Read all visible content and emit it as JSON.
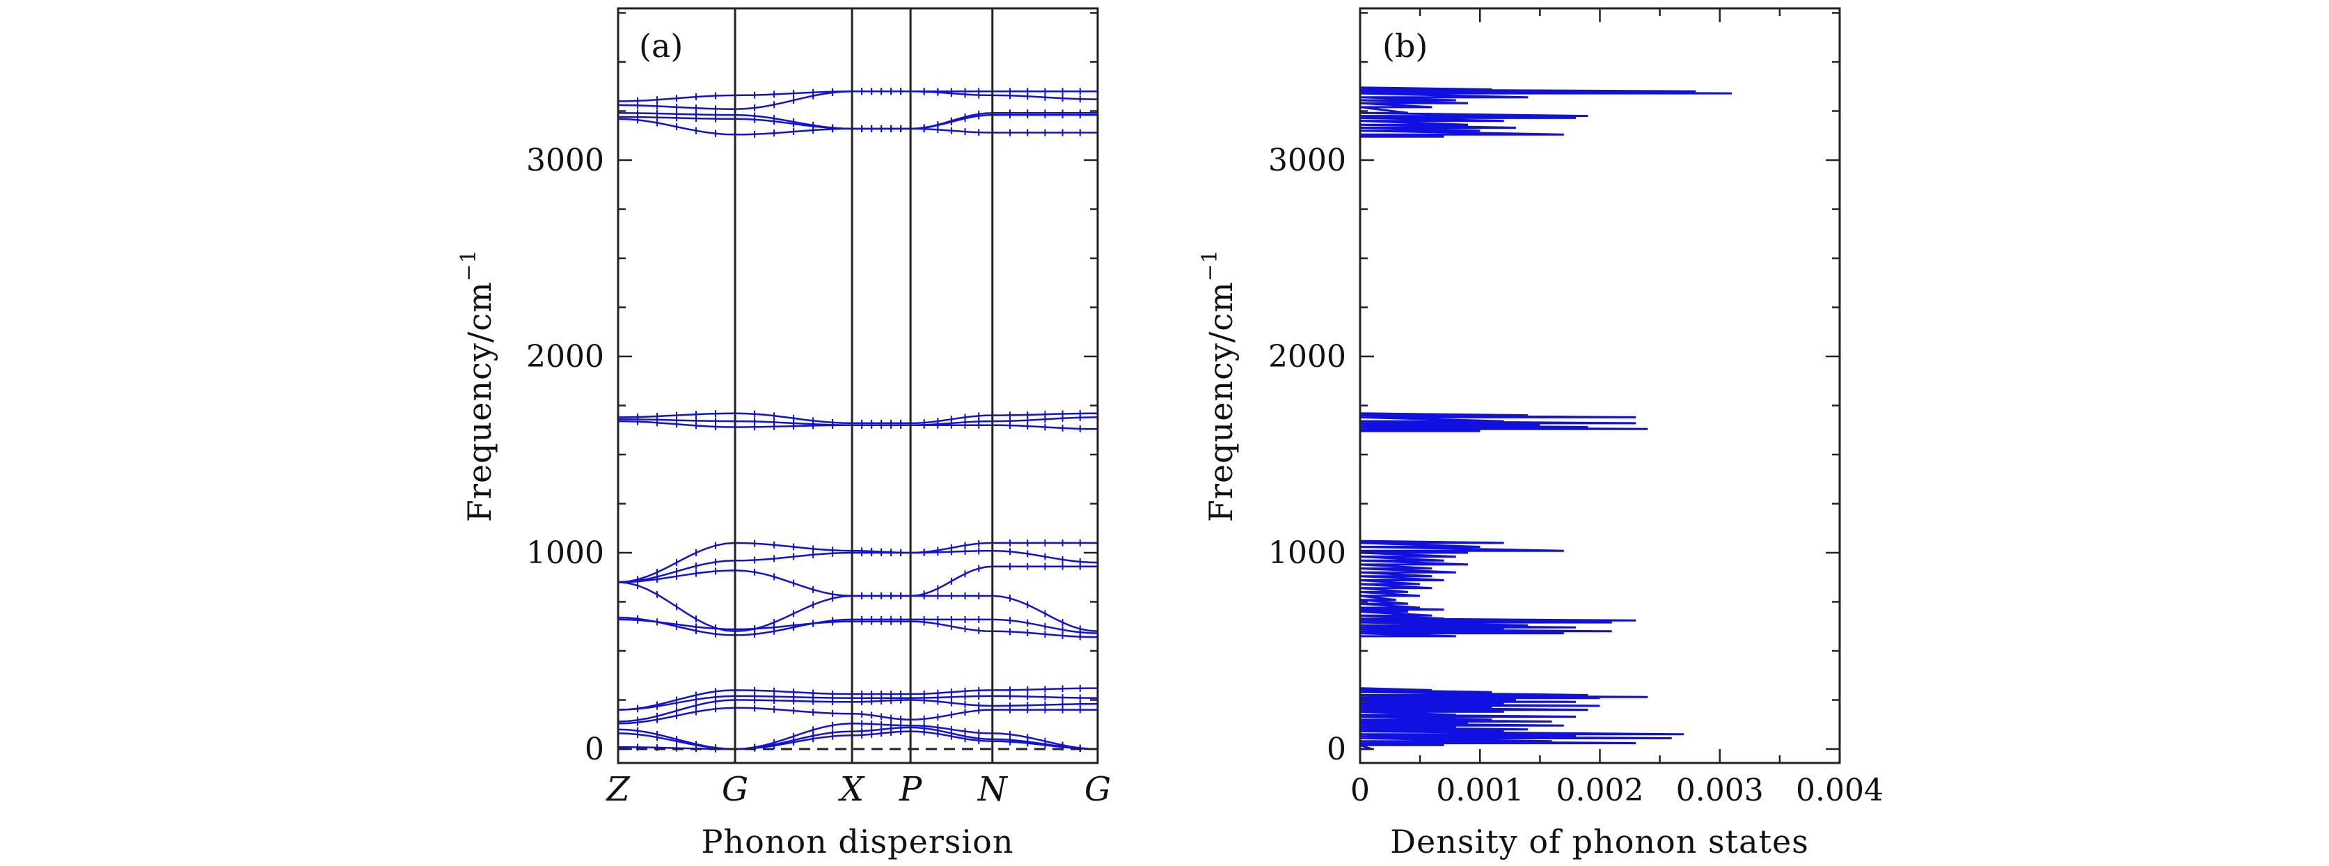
{
  "chart_data": [
    {
      "type": "line",
      "panel_label": "(a)",
      "xlabel": "Phonon dispersion",
      "ylabel": "Frequency/cm",
      "ylabel_sup": "−1",
      "ylim": [
        -80,
        3800
      ],
      "yticks": [
        0,
        1000,
        2000,
        3000
      ],
      "ytick_labels": [
        "0",
        "1000",
        "2000",
        "3000"
      ],
      "k_points": [
        "Z",
        "G",
        "X",
        "P",
        "N",
        "G"
      ],
      "k_positions": [
        0,
        1,
        2,
        2.5,
        3.2,
        4.1
      ],
      "zero_line": true,
      "color": "#1010e0",
      "branches": [
        {
          "y": [
            3300,
            3330,
            3350,
            3350,
            3350,
            3350
          ]
        },
        {
          "y": [
            3280,
            3260,
            3350,
            3350,
            3330,
            3310
          ]
        },
        {
          "y": [
            3240,
            3230,
            3160,
            3160,
            3230,
            3230
          ]
        },
        {
          "y": [
            3220,
            3210,
            3160,
            3160,
            3240,
            3240
          ]
        },
        {
          "y": [
            3210,
            3130,
            3160,
            3160,
            3140,
            3140
          ]
        },
        {
          "y": [
            1690,
            1710,
            1660,
            1660,
            1700,
            1710
          ]
        },
        {
          "y": [
            1680,
            1670,
            1650,
            1650,
            1670,
            1690
          ]
        },
        {
          "y": [
            1670,
            1640,
            1650,
            1650,
            1650,
            1630
          ]
        },
        {
          "y": [
            850,
            1050,
            1010,
            1000,
            1050,
            1050
          ]
        },
        {
          "y": [
            850,
            960,
            1000,
            1000,
            1010,
            950
          ]
        },
        {
          "y": [
            850,
            910,
            780,
            780,
            930,
            930
          ]
        },
        {
          "y": [
            850,
            600,
            780,
            780,
            780,
            600
          ]
        },
        {
          "y": [
            670,
            580,
            660,
            660,
            660,
            590
          ]
        },
        {
          "y": [
            660,
            610,
            650,
            650,
            600,
            570
          ]
        },
        {
          "y": [
            200,
            300,
            280,
            280,
            300,
            310
          ]
        },
        {
          "y": [
            200,
            270,
            260,
            260,
            270,
            260
          ]
        },
        {
          "y": [
            140,
            250,
            240,
            250,
            220,
            230
          ]
        },
        {
          "y": [
            130,
            210,
            180,
            150,
            200,
            200
          ]
        },
        {
          "y": [
            100,
            0,
            130,
            120,
            80,
            0
          ]
        },
        {
          "y": [
            80,
            0,
            90,
            110,
            50,
            0
          ]
        },
        {
          "y": [
            10,
            0,
            70,
            90,
            40,
            0
          ]
        }
      ]
    },
    {
      "type": "line",
      "panel_label": "(b)",
      "xlabel": "Density of phonon states",
      "ylabel": "Frequency/cm",
      "ylabel_sup": "−1",
      "xlim": [
        0,
        0.004
      ],
      "ylim": [
        -80,
        3800
      ],
      "xticks": [
        0,
        0.001,
        0.002,
        0.003,
        0.004
      ],
      "xtick_labels": [
        "0",
        "0.001",
        "0.002",
        "0.003",
        "0.004"
      ],
      "yticks": [
        0,
        1000,
        2000,
        3000
      ],
      "ytick_labels": [
        "0",
        "1000",
        "2000",
        "3000"
      ],
      "color": "#1010e0",
      "dos": [
        [
          -60,
          0
        ],
        [
          0,
          0.0001
        ],
        [
          20,
          0.0007
        ],
        [
          30,
          0.0023
        ],
        [
          40,
          0.0016
        ],
        [
          55,
          0.0026
        ],
        [
          65,
          0.0018
        ],
        [
          75,
          0.0027
        ],
        [
          90,
          0.0012
        ],
        [
          100,
          0.0014
        ],
        [
          110,
          0.0008
        ],
        [
          120,
          0.0017
        ],
        [
          130,
          0.0009
        ],
        [
          140,
          0.0016
        ],
        [
          150,
          0.0011
        ],
        [
          165,
          0.0018
        ],
        [
          175,
          0.0008
        ],
        [
          190,
          0.0012
        ],
        [
          200,
          0.0019
        ],
        [
          210,
          0.0011
        ],
        [
          220,
          0.002
        ],
        [
          230,
          0.0012
        ],
        [
          240,
          0.0018
        ],
        [
          250,
          0.0013
        ],
        [
          260,
          0.002
        ],
        [
          265,
          0.0024
        ],
        [
          275,
          0.0019
        ],
        [
          290,
          0.0011
        ],
        [
          300,
          0.0006
        ],
        [
          310,
          0
        ],
        [
          560,
          0
        ],
        [
          575,
          0.0008
        ],
        [
          590,
          0.0017
        ],
        [
          600,
          0.0021
        ],
        [
          610,
          0.0012
        ],
        [
          620,
          0.0018
        ],
        [
          630,
          0.0014
        ],
        [
          645,
          0.0021
        ],
        [
          655,
          0.0023
        ],
        [
          665,
          0.0007
        ],
        [
          680,
          0.0006
        ],
        [
          700,
          0.0004
        ],
        [
          710,
          0.0007
        ],
        [
          720,
          0.0005
        ],
        [
          740,
          0.0004
        ],
        [
          760,
          0.0003
        ],
        [
          780,
          0.0005
        ],
        [
          800,
          0.0004
        ],
        [
          820,
          0.0006
        ],
        [
          840,
          0.0005
        ],
        [
          860,
          0.0007
        ],
        [
          880,
          0.0006
        ],
        [
          900,
          0.0008
        ],
        [
          920,
          0.0006
        ],
        [
          940,
          0.0009
        ],
        [
          960,
          0.0007
        ],
        [
          980,
          0.0008
        ],
        [
          1000,
          0.0009
        ],
        [
          1010,
          0.0017
        ],
        [
          1030,
          0.001
        ],
        [
          1050,
          0.0012
        ],
        [
          1060,
          0
        ],
        [
          1600,
          0
        ],
        [
          1620,
          0.001
        ],
        [
          1630,
          0.0024
        ],
        [
          1640,
          0.0019
        ],
        [
          1650,
          0.0015
        ],
        [
          1660,
          0.0023
        ],
        [
          1670,
          0.0012
        ],
        [
          1690,
          0.0023
        ],
        [
          1700,
          0.0014
        ],
        [
          1710,
          0
        ],
        [
          3100,
          0
        ],
        [
          3120,
          0.0007
        ],
        [
          3130,
          0.0017
        ],
        [
          3150,
          0.001
        ],
        [
          3165,
          0.0013
        ],
        [
          3180,
          0.0009
        ],
        [
          3200,
          0.0012
        ],
        [
          3215,
          0.0018
        ],
        [
          3225,
          0.0019
        ],
        [
          3240,
          0.0004
        ],
        [
          3270,
          0.0006
        ],
        [
          3290,
          0.0009
        ],
        [
          3305,
          0.0008
        ],
        [
          3320,
          0.0014
        ],
        [
          3340,
          0.0031
        ],
        [
          3350,
          0.0028
        ],
        [
          3360,
          0.0011
        ],
        [
          3370,
          0
        ]
      ]
    }
  ]
}
